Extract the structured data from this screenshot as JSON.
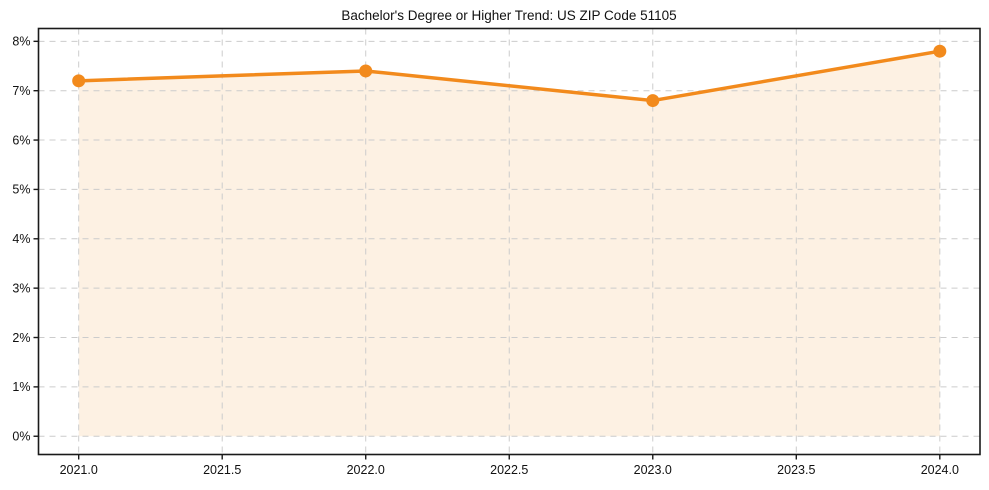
{
  "chart_data": {
    "type": "line",
    "title": "Bachelor's Degree or Higher Trend: US ZIP Code 51105",
    "xlabel": "",
    "ylabel": "",
    "x": [
      2021,
      2022,
      2023,
      2024
    ],
    "series": [
      {
        "name": "Bachelor's Degree or Higher",
        "values": [
          7.2,
          7.4,
          6.8,
          7.8
        ]
      }
    ],
    "x_ticks": [
      2021.0,
      2021.5,
      2022.0,
      2022.5,
      2023.0,
      2023.5,
      2024.0
    ],
    "x_tick_labels": [
      "2021.0",
      "2021.5",
      "2022.0",
      "2022.5",
      "2023.0",
      "2023.5",
      "2024.0"
    ],
    "y_ticks": [
      0,
      1,
      2,
      3,
      4,
      5,
      6,
      7,
      8
    ],
    "y_tick_labels": [
      "0%",
      "1%",
      "2%",
      "3%",
      "4%",
      "5%",
      "6%",
      "7%",
      "8%"
    ],
    "xlim": [
      2020.86,
      2024.14
    ],
    "ylim": [
      -0.37,
      8.26
    ],
    "grid": true,
    "grid_style": "dashed",
    "legend": "none",
    "area": true,
    "area_baseline": 0,
    "marker": "circle",
    "colors": {
      "line": "#f28a1c",
      "marker": "#f28a1c",
      "area_fill": "rgba(242,138,28,0.12)",
      "grid": "#cccccc",
      "axis": "#1a1a1a",
      "text": "#111111",
      "background": "#ffffff"
    }
  }
}
